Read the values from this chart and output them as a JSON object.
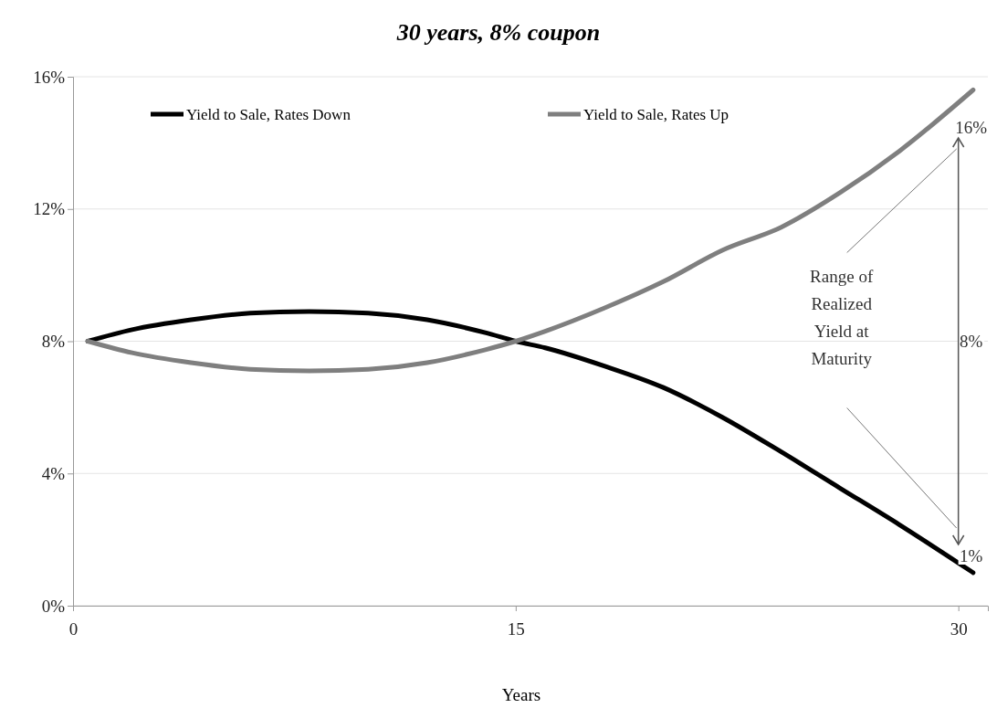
{
  "chart_data": {
    "type": "line",
    "title": "30 years, 8% coupon",
    "xlabel": "Years",
    "xlim": [
      0,
      31
    ],
    "xticks": [
      0,
      15,
      30
    ],
    "ylim": [
      0,
      16
    ],
    "yticks": [
      {
        "value": 0,
        "label": "0%"
      },
      {
        "value": 4,
        "label": "4%"
      },
      {
        "value": 8,
        "label": "8%"
      },
      {
        "value": 12,
        "label": "12%"
      },
      {
        "value": 16,
        "label": "16%"
      }
    ],
    "grid": "y",
    "legend": "top",
    "marker": "none",
    "line_style": "solid",
    "x": [
      0.5,
      2,
      4,
      6,
      8,
      10,
      12,
      14,
      15,
      16,
      18,
      20,
      22,
      24,
      26,
      28,
      30.5
    ],
    "series": [
      {
        "name": "Yield to Sale, Rates Down",
        "color": "#000000",
        "values": [
          8,
          8.35,
          8.65,
          8.85,
          8.9,
          8.85,
          8.65,
          8.25,
          8.0,
          7.8,
          7.25,
          6.6,
          5.7,
          4.65,
          3.55,
          2.45,
          1.0
        ]
      },
      {
        "name": "Yield to Sale, Rates Up",
        "color": "#7f7f7f",
        "values": [
          8,
          7.65,
          7.35,
          7.15,
          7.1,
          7.15,
          7.35,
          7.75,
          8.0,
          8.3,
          9.0,
          9.8,
          10.75,
          11.45,
          12.5,
          13.75,
          15.6
        ]
      }
    ],
    "annotations": [
      "16%",
      "8%",
      "1%",
      "Range of Realized Yield at Maturity"
    ]
  }
}
